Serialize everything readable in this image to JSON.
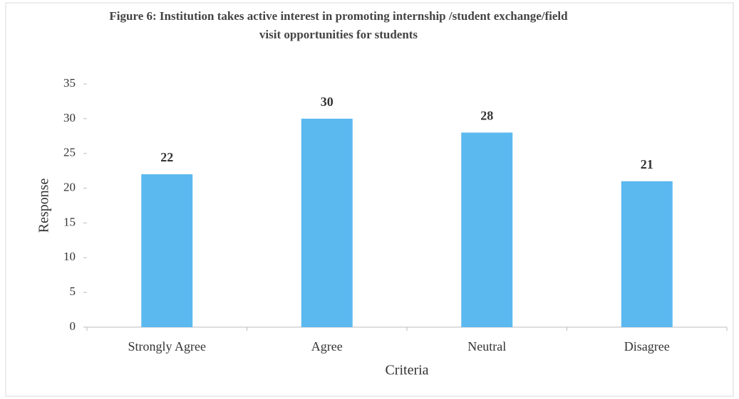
{
  "chart_data": {
    "type": "bar",
    "title": "Figure 6: Institution takes active interest in promoting internship /student exchange/field visit opportunities for students",
    "x_label": "Criteria",
    "y_label": "Response",
    "categories": [
      "Strongly Agree",
      "Agree",
      "Neutral",
      "Disagree"
    ],
    "values": [
      22,
      30,
      28,
      21
    ],
    "color": "#5bb9f0",
    "ylim": [
      0,
      35
    ],
    "yticks": [
      0,
      5,
      10,
      15,
      20,
      25,
      30,
      35
    ],
    "grid": false
  }
}
